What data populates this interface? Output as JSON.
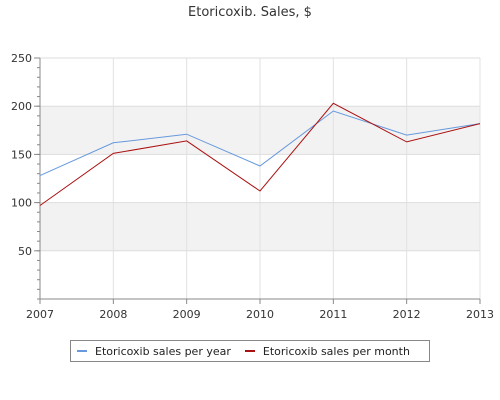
{
  "chart_data": {
    "type": "line",
    "title": "Etoricoxib. Sales, $",
    "xlabel": "",
    "ylabel": "",
    "x": [
      "2007",
      "2008",
      "2009",
      "2010",
      "2011",
      "2012",
      "2013"
    ],
    "ylim": [
      0,
      250
    ],
    "yticks": [
      50,
      100,
      150,
      200,
      250
    ],
    "grid": true,
    "legend_position": "bottom",
    "series": [
      {
        "name": "Etoricoxib sales per year",
        "color": "#6699dd",
        "values": [
          128,
          162,
          171,
          138,
          195,
          170,
          182
        ]
      },
      {
        "name": "Etoricoxib sales per month",
        "color": "#aa1111",
        "values": [
          97,
          151,
          164,
          112,
          203,
          163,
          182
        ]
      }
    ]
  }
}
